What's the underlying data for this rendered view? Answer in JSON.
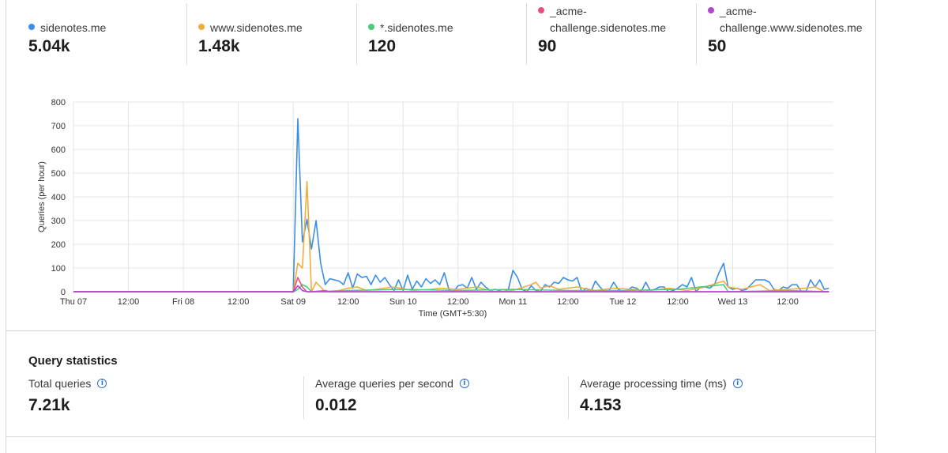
{
  "legend": [
    {
      "name": "sidenotes.me",
      "value": "5.04k",
      "color": "#3b8ee6"
    },
    {
      "name": "www.sidenotes.me",
      "value": "1.48k",
      "color": "#f0ad3a"
    },
    {
      "name": "*.sidenotes.me",
      "value": "120",
      "color": "#4cc97a"
    },
    {
      "name": "_acme-challenge.sidenotes.me",
      "value": "90",
      "color": "#e94f86"
    },
    {
      "name": "_acme-challenge.www.sidenotes.me",
      "value": "50",
      "color": "#b044d6"
    }
  ],
  "chart_data": {
    "type": "line",
    "xlabel": "Time (GMT+5:30)",
    "ylabel": "Queries (per hour)",
    "ylim": [
      0,
      800
    ],
    "yticks": [
      0,
      100,
      200,
      300,
      400,
      500,
      600,
      700,
      800
    ],
    "xrange_hours": [
      0,
      166
    ],
    "xticks": [
      {
        "h": 0,
        "label": "Thu 07"
      },
      {
        "h": 12,
        "label": "12:00"
      },
      {
        "h": 24,
        "label": "Fri 08"
      },
      {
        "h": 36,
        "label": "12:00"
      },
      {
        "h": 48,
        "label": "Sat 09"
      },
      {
        "h": 60,
        "label": "12:00"
      },
      {
        "h": 72,
        "label": "Sun 10"
      },
      {
        "h": 84,
        "label": "12:00"
      },
      {
        "h": 96,
        "label": "Mon 11"
      },
      {
        "h": 108,
        "label": "12:00"
      },
      {
        "h": 120,
        "label": "Tue 12"
      },
      {
        "h": 132,
        "label": "12:00"
      },
      {
        "h": 144,
        "label": "Wed 13"
      },
      {
        "h": 156,
        "label": "12:00"
      }
    ],
    "grid": true,
    "series": [
      {
        "name": "sidenotes.me",
        "color": "#3b8ee6",
        "points": [
          [
            0,
            0
          ],
          [
            47,
            0
          ],
          [
            48,
            0
          ],
          [
            49,
            730
          ],
          [
            50,
            210
          ],
          [
            51,
            305
          ],
          [
            52,
            180
          ],
          [
            53,
            300
          ],
          [
            54,
            120
          ],
          [
            55,
            30
          ],
          [
            56,
            55
          ],
          [
            57,
            50
          ],
          [
            58,
            45
          ],
          [
            59,
            30
          ],
          [
            60,
            80
          ],
          [
            61,
            15
          ],
          [
            62,
            75
          ],
          [
            63,
            60
          ],
          [
            64,
            65
          ],
          [
            65,
            30
          ],
          [
            66,
            70
          ],
          [
            67,
            40
          ],
          [
            68,
            60
          ],
          [
            69,
            30
          ],
          [
            70,
            5
          ],
          [
            71,
            50
          ],
          [
            72,
            5
          ],
          [
            73,
            70
          ],
          [
            74,
            10
          ],
          [
            75,
            45
          ],
          [
            76,
            20
          ],
          [
            77,
            55
          ],
          [
            78,
            35
          ],
          [
            79,
            50
          ],
          [
            80,
            30
          ],
          [
            81,
            80
          ],
          [
            82,
            10
          ],
          [
            83,
            0
          ],
          [
            84,
            25
          ],
          [
            85,
            30
          ],
          [
            86,
            15
          ],
          [
            87,
            60
          ],
          [
            88,
            10
          ],
          [
            89,
            40
          ],
          [
            90,
            20
          ],
          [
            91,
            5
          ],
          [
            92,
            10
          ],
          [
            93,
            5
          ],
          [
            94,
            0
          ],
          [
            95,
            10
          ],
          [
            96,
            90
          ],
          [
            97,
            60
          ],
          [
            98,
            10
          ],
          [
            99,
            0
          ],
          [
            100,
            25
          ],
          [
            101,
            5
          ],
          [
            102,
            0
          ],
          [
            103,
            30
          ],
          [
            104,
            20
          ],
          [
            105,
            40
          ],
          [
            106,
            35
          ],
          [
            107,
            60
          ],
          [
            108,
            50
          ],
          [
            109,
            45
          ],
          [
            110,
            60
          ],
          [
            111,
            0
          ],
          [
            112,
            15
          ],
          [
            113,
            0
          ],
          [
            114,
            45
          ],
          [
            115,
            20
          ],
          [
            116,
            0
          ],
          [
            117,
            5
          ],
          [
            118,
            40
          ],
          [
            119,
            10
          ],
          [
            120,
            0
          ],
          [
            121,
            5
          ],
          [
            122,
            20
          ],
          [
            123,
            15
          ],
          [
            124,
            0
          ],
          [
            125,
            40
          ],
          [
            126,
            5
          ],
          [
            127,
            10
          ],
          [
            128,
            20
          ],
          [
            129,
            20
          ],
          [
            130,
            0
          ],
          [
            131,
            5
          ],
          [
            132,
            15
          ],
          [
            133,
            30
          ],
          [
            134,
            20
          ],
          [
            135,
            60
          ],
          [
            136,
            0
          ],
          [
            137,
            20
          ],
          [
            138,
            20
          ],
          [
            139,
            15
          ],
          [
            140,
            30
          ],
          [
            141,
            80
          ],
          [
            142,
            120
          ],
          [
            143,
            20
          ],
          [
            144,
            10
          ],
          [
            145,
            15
          ],
          [
            146,
            5
          ],
          [
            147,
            10
          ],
          [
            148,
            30
          ],
          [
            149,
            50
          ],
          [
            150,
            50
          ],
          [
            151,
            50
          ],
          [
            152,
            40
          ],
          [
            153,
            10
          ],
          [
            154,
            5
          ],
          [
            155,
            20
          ],
          [
            156,
            15
          ],
          [
            157,
            30
          ],
          [
            158,
            30
          ],
          [
            159,
            0
          ],
          [
            160,
            0
          ],
          [
            161,
            50
          ],
          [
            162,
            20
          ],
          [
            163,
            50
          ],
          [
            164,
            10
          ],
          [
            165,
            15
          ]
        ]
      },
      {
        "name": "www.sidenotes.me",
        "color": "#f0ad3a",
        "points": [
          [
            0,
            0
          ],
          [
            48,
            0
          ],
          [
            49,
            120
          ],
          [
            50,
            100
          ],
          [
            51,
            465
          ],
          [
            52,
            0
          ],
          [
            53,
            40
          ],
          [
            54,
            20
          ],
          [
            55,
            0
          ],
          [
            58,
            5
          ],
          [
            60,
            15
          ],
          [
            62,
            20
          ],
          [
            64,
            5
          ],
          [
            66,
            10
          ],
          [
            70,
            20
          ],
          [
            74,
            5
          ],
          [
            78,
            10
          ],
          [
            80,
            15
          ],
          [
            84,
            10
          ],
          [
            88,
            20
          ],
          [
            92,
            0
          ],
          [
            96,
            5
          ],
          [
            100,
            30
          ],
          [
            101,
            40
          ],
          [
            102,
            15
          ],
          [
            104,
            25
          ],
          [
            106,
            10
          ],
          [
            110,
            20
          ],
          [
            114,
            5
          ],
          [
            118,
            15
          ],
          [
            122,
            10
          ],
          [
            126,
            5
          ],
          [
            130,
            15
          ],
          [
            134,
            5
          ],
          [
            138,
            20
          ],
          [
            142,
            45
          ],
          [
            143,
            20
          ],
          [
            146,
            10
          ],
          [
            150,
            30
          ],
          [
            152,
            5
          ],
          [
            156,
            10
          ],
          [
            160,
            15
          ],
          [
            162,
            20
          ],
          [
            164,
            0
          ],
          [
            165,
            0
          ]
        ]
      },
      {
        "name": "*.sidenotes.me",
        "color": "#4cc97a",
        "points": [
          [
            0,
            0
          ],
          [
            48,
            0
          ],
          [
            49,
            10
          ],
          [
            50,
            30
          ],
          [
            51,
            20
          ],
          [
            52,
            0
          ],
          [
            60,
            5
          ],
          [
            72,
            10
          ],
          [
            84,
            5
          ],
          [
            96,
            10
          ],
          [
            108,
            5
          ],
          [
            120,
            5
          ],
          [
            132,
            10
          ],
          [
            142,
            30
          ],
          [
            143,
            0
          ],
          [
            156,
            5
          ],
          [
            165,
            0
          ]
        ]
      },
      {
        "name": "_acme-challenge.sidenotes.me",
        "color": "#e94f86",
        "points": [
          [
            0,
            0
          ],
          [
            48,
            0
          ],
          [
            49,
            60
          ],
          [
            50,
            20
          ],
          [
            51,
            0
          ],
          [
            52,
            0
          ],
          [
            55,
            5
          ],
          [
            56,
            0
          ],
          [
            165,
            0
          ]
        ]
      },
      {
        "name": "_acme-challenge.www.sidenotes.me",
        "color": "#b044d6",
        "points": [
          [
            0,
            0
          ],
          [
            48,
            0
          ],
          [
            49,
            25
          ],
          [
            50,
            5
          ],
          [
            51,
            0
          ],
          [
            165,
            0
          ]
        ]
      }
    ]
  },
  "stats": {
    "title": "Query statistics",
    "items": [
      {
        "label": "Total queries",
        "value": "7.21k"
      },
      {
        "label": "Average queries per second",
        "value": "0.012"
      },
      {
        "label": "Average processing time (ms)",
        "value": "4.153"
      }
    ]
  },
  "icons": {
    "info": "info-icon"
  }
}
